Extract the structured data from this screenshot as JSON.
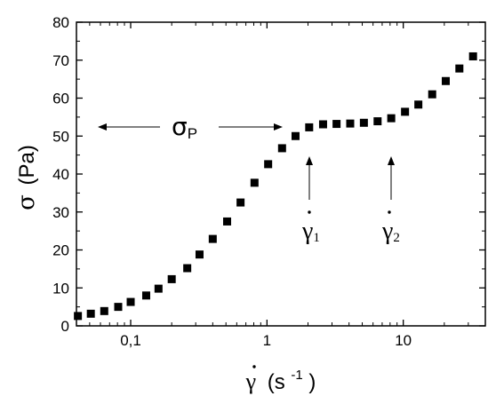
{
  "chart_data": {
    "type": "scatter",
    "xscale": "log",
    "xlim": [
      0.04,
      40
    ],
    "ylim": [
      0,
      80
    ],
    "grid": false,
    "legend": "none",
    "marker": "square",
    "marker_color": "#000000",
    "xlabel": {
      "symbol": "γ",
      "open": "(s",
      "exp": "-1",
      "close": ")"
    },
    "ylabel": {
      "symbol": "σ",
      "units": "(Pa)"
    },
    "x_ticks": [
      {
        "value": 0.1,
        "label": "0,1"
      },
      {
        "value": 1,
        "label": "1"
      },
      {
        "value": 10,
        "label": "10"
      }
    ],
    "y_ticks": [
      {
        "value": 0,
        "label": "0"
      },
      {
        "value": 10,
        "label": "10"
      },
      {
        "value": 20,
        "label": "20"
      },
      {
        "value": 30,
        "label": "30"
      },
      {
        "value": 40,
        "label": "40"
      },
      {
        "value": 50,
        "label": "50"
      },
      {
        "value": 60,
        "label": "60"
      },
      {
        "value": 70,
        "label": "70"
      },
      {
        "value": 80,
        "label": "80"
      }
    ],
    "series": [
      {
        "x": [
          0.041,
          0.051,
          0.064,
          0.081,
          0.1,
          0.13,
          0.16,
          0.2,
          0.26,
          0.32,
          0.4,
          0.51,
          0.64,
          0.81,
          1.02,
          1.29,
          1.62,
          2.04,
          2.58,
          3.24,
          4.08,
          5.14,
          6.48,
          8.16,
          10.3,
          12.9,
          16.3,
          20.5,
          25.8,
          32.5
        ],
        "y": [
          2.6,
          3.2,
          3.9,
          5.0,
          6.3,
          8.0,
          9.8,
          12.3,
          15.2,
          18.8,
          22.9,
          27.5,
          32.5,
          37.7,
          42.6,
          46.8,
          50.0,
          52.3,
          53.1,
          53.2,
          53.3,
          53.5,
          53.9,
          54.7,
          56.4,
          58.3,
          61.0,
          64.5,
          67.8,
          71.0
        ]
      }
    ],
    "annotations": {
      "sigma_p": {
        "symbol": "σ",
        "subscript": "P"
      },
      "gamma_1": {
        "symbol": "γ",
        "subscript": "1"
      },
      "gamma_2": {
        "symbol": "γ",
        "subscript": "2"
      }
    }
  }
}
